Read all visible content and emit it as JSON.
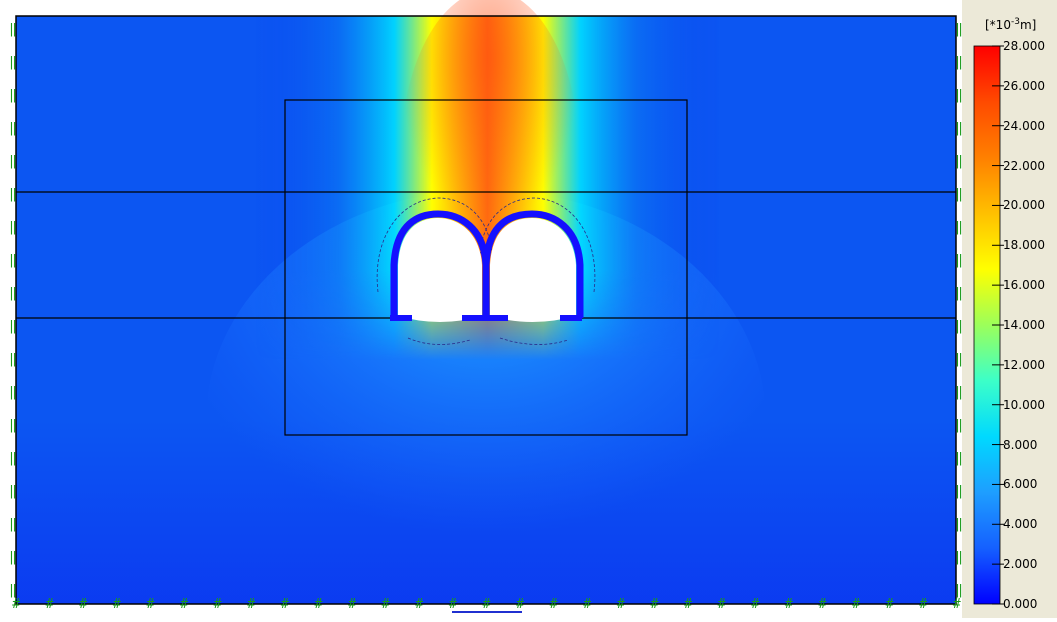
{
  "plot": {
    "quantity": "total displacement contour"
  },
  "legend": {
    "unit_prefix": "[*10",
    "unit_exponent": "-3",
    "unit_suffix": "m]",
    "ticks": [
      "28.000",
      "26.000",
      "24.000",
      "22.000",
      "20.000",
      "18.000",
      "16.000",
      "14.000",
      "12.000",
      "10.000",
      "8.000",
      "6.000",
      "4.000",
      "2.000",
      "0.000"
    ],
    "colors": [
      "#0000ff",
      "#1560ff",
      "#1e9eff",
      "#00d9ff",
      "#3cffc8",
      "#9cff5a",
      "#ffff00",
      "#ffc000",
      "#ff8000",
      "#ff4a00",
      "#ff0000"
    ]
  }
}
